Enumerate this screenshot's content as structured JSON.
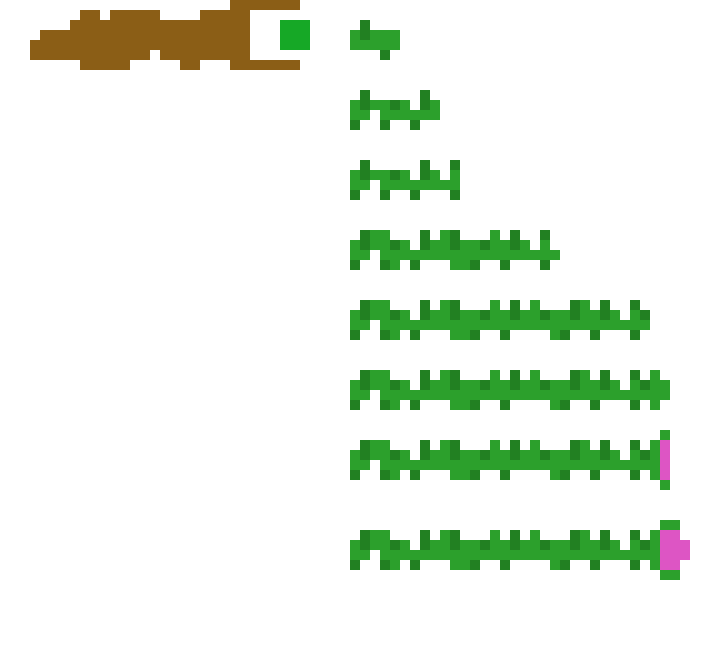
{
  "palette": {
    "branch_brown": "#8b5e16",
    "bud_green": "#16a826",
    "stem_light_green": "#2ca02c",
    "stem_dark_green": "#228022",
    "flower_magenta": "#dd55c4",
    "background": "#ffffff"
  },
  "sprites": {
    "branch": {
      "name": "branch-sprite"
    },
    "growth_stages": [
      {
        "stage": 1
      },
      {
        "stage": 2
      },
      {
        "stage": 3
      },
      {
        "stage": 4
      },
      {
        "stage": 5
      },
      {
        "stage": 6
      },
      {
        "stage": 7
      },
      {
        "stage": 8
      }
    ]
  }
}
